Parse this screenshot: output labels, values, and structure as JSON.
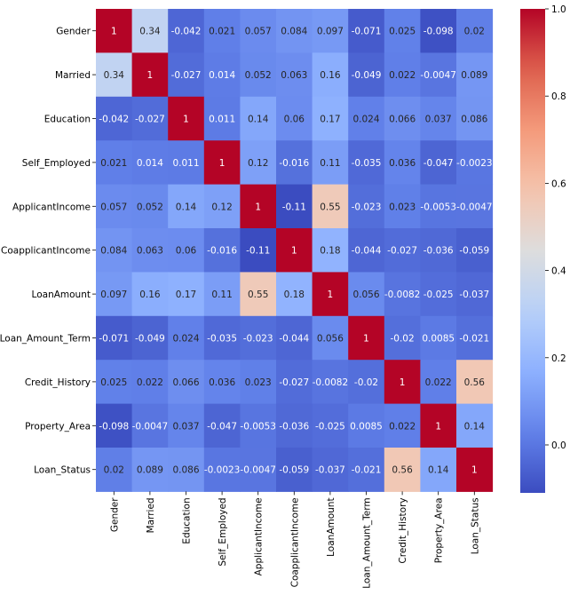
{
  "chart_data": {
    "type": "heatmap",
    "title": "",
    "xlabel": "",
    "ylabel": "",
    "colormap": "coolwarm",
    "row_labels": [
      "Gender",
      "Married",
      "Education",
      "Self_Employed",
      "ApplicantIncome",
      "CoapplicantIncome",
      "LoanAmount",
      "Loan_Amount_Term",
      "Credit_History",
      "Property_Area",
      "Loan_Status"
    ],
    "col_labels": [
      "Gender",
      "Married",
      "Education",
      "Self_Employed",
      "ApplicantIncome",
      "CoapplicantIncome",
      "LoanAmount",
      "Loan_Amount_Term",
      "Credit_History",
      "Property_Area",
      "Loan_Status"
    ],
    "values": [
      [
        1,
        0.34,
        -0.042,
        0.021,
        0.057,
        0.084,
        0.097,
        -0.071,
        0.025,
        -0.098,
        0.02
      ],
      [
        0.34,
        1,
        -0.027,
        0.014,
        0.052,
        0.063,
        0.16,
        -0.049,
        0.022,
        -0.0047,
        0.089
      ],
      [
        -0.042,
        -0.027,
        1,
        0.011,
        0.14,
        0.06,
        0.17,
        0.024,
        0.066,
        0.037,
        0.086
      ],
      [
        0.021,
        0.014,
        0.011,
        1,
        0.12,
        -0.016,
        0.11,
        -0.035,
        0.036,
        -0.047,
        -0.0023
      ],
      [
        0.057,
        0.052,
        0.14,
        0.12,
        1,
        -0.11,
        0.55,
        -0.023,
        0.023,
        -0.0053,
        -0.0047
      ],
      [
        0.084,
        0.063,
        0.06,
        -0.016,
        -0.11,
        1,
        0.18,
        -0.044,
        -0.027,
        -0.036,
        -0.059
      ],
      [
        0.097,
        0.16,
        0.17,
        0.11,
        0.55,
        0.18,
        1,
        0.056,
        -0.0082,
        -0.025,
        -0.037
      ],
      [
        -0.071,
        -0.049,
        0.024,
        -0.035,
        -0.023,
        -0.044,
        0.056,
        1,
        -0.02,
        0.0085,
        -0.021
      ],
      [
        0.025,
        0.022,
        0.066,
        0.036,
        0.023,
        -0.027,
        -0.0082,
        -0.02,
        1,
        0.022,
        0.56
      ],
      [
        -0.098,
        -0.0047,
        0.037,
        -0.047,
        -0.0053,
        -0.036,
        -0.025,
        0.0085,
        0.022,
        1,
        0.14
      ],
      [
        0.02,
        0.089,
        0.086,
        -0.0023,
        -0.0047,
        -0.059,
        -0.037,
        -0.021,
        0.56,
        0.14,
        1
      ]
    ],
    "vmin": -0.11,
    "vmax": 1.0,
    "colorbar_ticks": [
      1.0,
      0.8,
      0.6,
      0.4,
      0.2,
      0.0
    ],
    "colorbar_tick_labels": [
      "1.0",
      "0.8",
      "0.6",
      "0.4",
      "0.2",
      "0.0"
    ],
    "annotations": true
  }
}
